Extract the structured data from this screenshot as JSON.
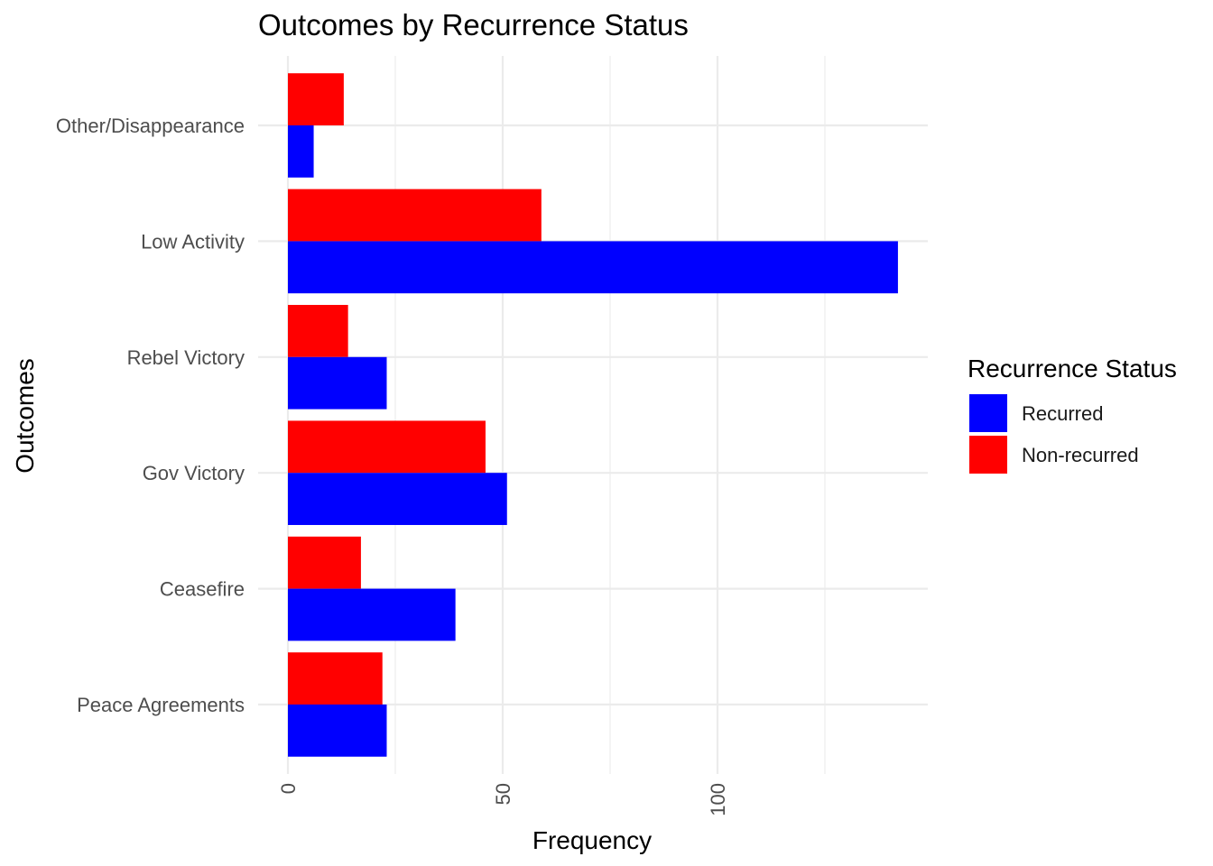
{
  "chart_data": {
    "type": "bar",
    "orientation": "horizontal",
    "title": "Outcomes by Recurrence Status",
    "xlabel": "Frequency",
    "ylabel": "Outcomes",
    "categories": [
      "Peace Agreements",
      "Ceasefire",
      "Gov Victory",
      "Rebel Victory",
      "Low Activity",
      "Other/Disappearance"
    ],
    "series": [
      {
        "name": "Recurred",
        "color": "#0000ff",
        "values": [
          23,
          39,
          51,
          23,
          142,
          6
        ]
      },
      {
        "name": "Non-recurred",
        "color": "#ff0000",
        "values": [
          22,
          17,
          46,
          14,
          59,
          13
        ]
      }
    ],
    "xlim": [
      0,
      149
    ],
    "xticks": [
      {
        "value": 0,
        "label": "0"
      },
      {
        "value": 50,
        "label": "50"
      },
      {
        "value": 100,
        "label": "100"
      }
    ],
    "minor_ticks": [
      25,
      75,
      125
    ],
    "grid": true,
    "legend": {
      "title": "Recurrence Status",
      "position": "right",
      "items": [
        "Recurred",
        "Non-recurred"
      ]
    }
  }
}
